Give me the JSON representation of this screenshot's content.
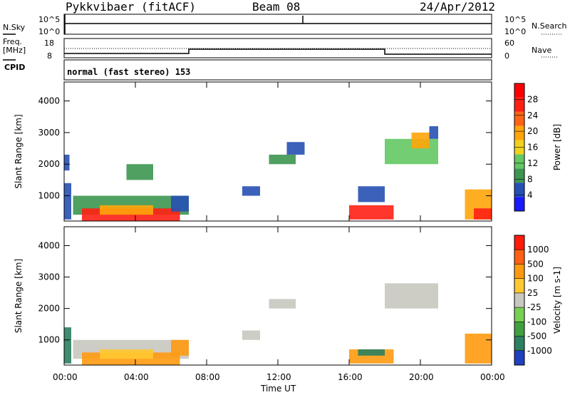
{
  "header": {
    "station": "Pykkvibaer (fitACF)",
    "beam": "Beam 08",
    "date": "24/Apr/2012"
  },
  "nsky_panel": {
    "left_label": "N.Sky",
    "left_ticks": [
      "10^5",
      "10^0"
    ],
    "right_label": "N.Search",
    "right_ticks": [
      "10^5",
      "10^0"
    ]
  },
  "freq_panel": {
    "left_label_top": "Freq.",
    "left_label_unit": "[MHz]",
    "left_ticks": [
      "18",
      "8"
    ],
    "right_label": "Nave",
    "right_ticks": [
      "60",
      "0"
    ],
    "cpid_label": "CPID"
  },
  "cpid_text": "normal (fast stereo) 153",
  "x_ticks": [
    "00:00",
    "04:00",
    "08:00",
    "12:00",
    "16:00",
    "20:00",
    "00:00"
  ],
  "x_axis_label": "Time UT",
  "colors": {
    "power": [
      "#1a1aff",
      "#2650b4",
      "#3c9650",
      "#64c864",
      "#f0d21e",
      "#ffa50a",
      "#ff6414",
      "#ff2014",
      "#ff0000"
    ],
    "velocity": [
      "#2040c0",
      "#2a8060",
      "#40a040",
      "#78d050",
      "#c8c8c0",
      "#ffc830",
      "#ff9a10",
      "#ff6014",
      "#ff1a0a"
    ]
  },
  "chart_data": [
    {
      "type": "heatmap",
      "name": "power",
      "ylabel": "Slant Range [km]",
      "yticks": [
        "1000",
        "2000",
        "3000",
        "4000"
      ],
      "ylim": [
        200,
        4600
      ],
      "xlim": [
        0,
        24
      ],
      "colorbar_label": "Power [dB]",
      "colorbar_ticks": [
        "4",
        "8",
        "12",
        "16",
        "20",
        "24",
        "28"
      ],
      "colorbar_range": [
        0,
        32
      ],
      "regions": [
        {
          "t": [
            0.0,
            0.4
          ],
          "r": [
            250,
            1400
          ],
          "level": 1
        },
        {
          "t": [
            0.0,
            0.3
          ],
          "r": [
            1800,
            2300
          ],
          "level": 1
        },
        {
          "t": [
            0.5,
            7.0
          ],
          "r": [
            400,
            1000
          ],
          "level": 2
        },
        {
          "t": [
            1.0,
            6.5
          ],
          "r": [
            200,
            600
          ],
          "level": 7
        },
        {
          "t": [
            2.0,
            5.0
          ],
          "r": [
            400,
            700
          ],
          "level": 5
        },
        {
          "t": [
            3.5,
            5.0
          ],
          "r": [
            1500,
            2000
          ],
          "level": 2
        },
        {
          "t": [
            6.0,
            7.0
          ],
          "r": [
            500,
            1000
          ],
          "level": 1
        },
        {
          "t": [
            10.0,
            11.0
          ],
          "r": [
            1000,
            1300
          ],
          "level": 1
        },
        {
          "t": [
            11.5,
            13.0
          ],
          "r": [
            2000,
            2300
          ],
          "level": 2
        },
        {
          "t": [
            12.5,
            13.5
          ],
          "r": [
            2300,
            2700
          ],
          "level": 1
        },
        {
          "t": [
            16.0,
            18.5
          ],
          "r": [
            250,
            700
          ],
          "level": 7
        },
        {
          "t": [
            16.5,
            18.0
          ],
          "r": [
            800,
            1300
          ],
          "level": 1
        },
        {
          "t": [
            18.0,
            21.0
          ],
          "r": [
            2000,
            2800
          ],
          "level": 3
        },
        {
          "t": [
            19.5,
            20.5
          ],
          "r": [
            2500,
            3000
          ],
          "level": 5
        },
        {
          "t": [
            20.5,
            21.0
          ],
          "r": [
            2800,
            3200
          ],
          "level": 1
        },
        {
          "t": [
            22.5,
            24.0
          ],
          "r": [
            250,
            1200
          ],
          "level": 5
        },
        {
          "t": [
            23.0,
            24.0
          ],
          "r": [
            250,
            600
          ],
          "level": 7
        }
      ]
    },
    {
      "type": "heatmap",
      "name": "velocity",
      "ylabel": "Slant Range [km]",
      "yticks": [
        "1000",
        "2000",
        "3000",
        "4000"
      ],
      "ylim": [
        200,
        4600
      ],
      "xlim": [
        0,
        24
      ],
      "colorbar_label": "Velocity [m s-1]",
      "colorbar_ticks": [
        "1000",
        "500",
        "100",
        "25",
        "-25",
        "-100",
        "-500",
        "-1000"
      ],
      "regions": [
        {
          "t": [
            0.0,
            0.4
          ],
          "r": [
            250,
            1400
          ],
          "level": 1
        },
        {
          "t": [
            0.5,
            7.0
          ],
          "r": [
            400,
            1000
          ],
          "level": 4
        },
        {
          "t": [
            1.0,
            6.5
          ],
          "r": [
            200,
            600
          ],
          "level": 6
        },
        {
          "t": [
            2.0,
            5.0
          ],
          "r": [
            400,
            700
          ],
          "level": 5
        },
        {
          "t": [
            6.0,
            7.0
          ],
          "r": [
            500,
            1000
          ],
          "level": 6
        },
        {
          "t": [
            10.0,
            11.0
          ],
          "r": [
            1000,
            1300
          ],
          "level": 4
        },
        {
          "t": [
            11.5,
            13.0
          ],
          "r": [
            2000,
            2300
          ],
          "level": 4
        },
        {
          "t": [
            16.0,
            18.5
          ],
          "r": [
            250,
            700
          ],
          "level": 6
        },
        {
          "t": [
            16.5,
            18.0
          ],
          "r": [
            500,
            700
          ],
          "level": 1
        },
        {
          "t": [
            18.0,
            21.0
          ],
          "r": [
            2000,
            2800
          ],
          "level": 4
        },
        {
          "t": [
            22.5,
            24.0
          ],
          "r": [
            250,
            1200
          ],
          "level": 6
        }
      ]
    }
  ]
}
